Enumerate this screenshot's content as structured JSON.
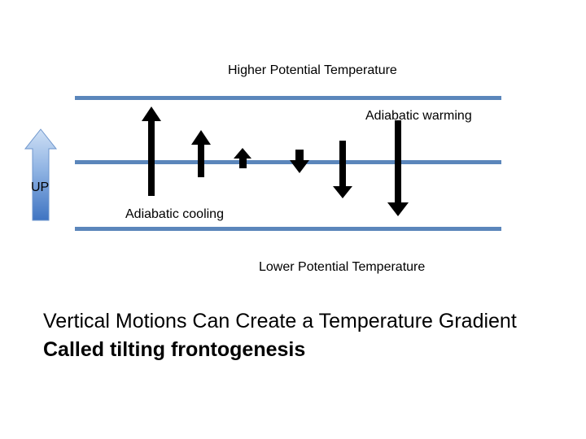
{
  "diagram": {
    "top_label": "Higher Potential Temperature",
    "warming_label": "Adiabatic warming",
    "up_label": "UP",
    "cooling_label": "Adiabatic cooling",
    "bottom_label": "Lower Potential Temperature",
    "stripe_color": "#5b86bb",
    "up_arrow_color": "#4a7ec8",
    "motion_arrow_color": "#000000",
    "motion_arrows": [
      {
        "name": "rising-arrow-large",
        "direction": "up",
        "relative_length": "long"
      },
      {
        "name": "rising-arrow-medium",
        "direction": "up",
        "relative_length": "medium"
      },
      {
        "name": "rising-arrow-small",
        "direction": "up",
        "relative_length": "short"
      },
      {
        "name": "sinking-arrow-small",
        "direction": "down",
        "relative_length": "short"
      },
      {
        "name": "sinking-arrow-medium",
        "direction": "down",
        "relative_length": "medium"
      },
      {
        "name": "sinking-arrow-large",
        "direction": "down",
        "relative_length": "long"
      }
    ]
  },
  "caption": {
    "line1": "Vertical Motions Can Create a Temperature Gradient",
    "line2": "Called tilting frontogenesis"
  }
}
